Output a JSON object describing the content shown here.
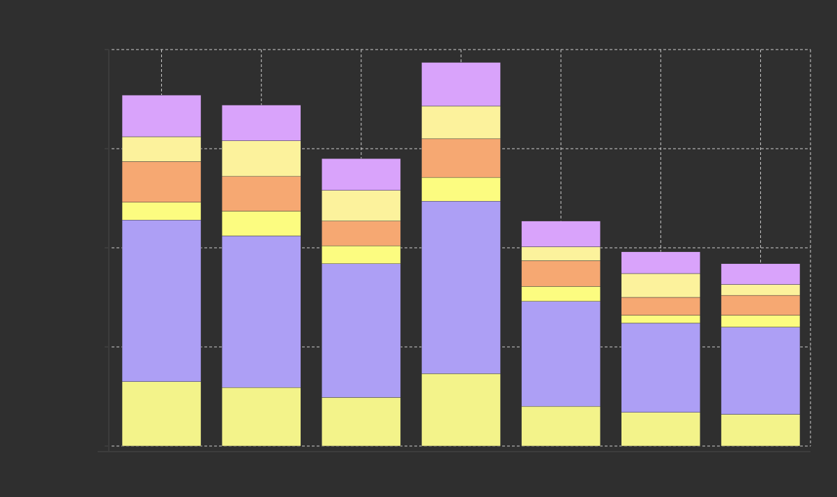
{
  "chart_data": {
    "type": "bar",
    "stacked": true,
    "categories": [
      "",
      "",
      "",
      "",
      "",
      "",
      ""
    ],
    "y_ticks": [
      "",
      "",
      "",
      "",
      ""
    ],
    "ylim": [
      0,
      4
    ],
    "grid": true,
    "series": [
      {
        "color": "#f3f38a",
        "values": [
          0.65,
          0.59,
          0.49,
          0.73,
          0.4,
          0.34,
          0.32
        ]
      },
      {
        "color": "#ad9ff5",
        "values": [
          1.63,
          1.53,
          1.35,
          1.74,
          1.06,
          0.9,
          0.88
        ]
      },
      {
        "color": "#fcfc80",
        "values": [
          0.18,
          0.25,
          0.18,
          0.24,
          0.15,
          0.08,
          0.12
        ]
      },
      {
        "color": "#f6a872",
        "values": [
          0.41,
          0.35,
          0.25,
          0.39,
          0.26,
          0.18,
          0.2
        ]
      },
      {
        "color": "#fcf29c",
        "values": [
          0.25,
          0.36,
          0.31,
          0.33,
          0.14,
          0.24,
          0.11
        ]
      },
      {
        "color": "#d9a3fb",
        "values": [
          0.42,
          0.36,
          0.32,
          0.44,
          0.26,
          0.22,
          0.21
        ]
      }
    ]
  }
}
